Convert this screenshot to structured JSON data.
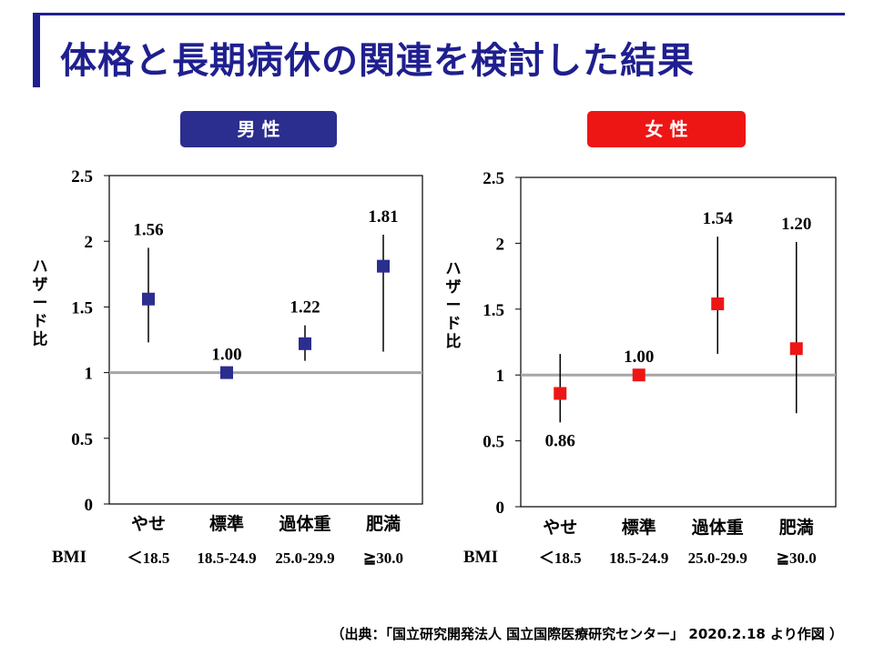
{
  "title": "体格と長期病休の関連を検討した結果",
  "source": "（出典：「国立研究開発法人 国立国際医療研究センター」 2020.2.18 より作図 ）",
  "colors": {
    "title": "#1f1f8f",
    "male": "#2b2d8f",
    "female": "#ee1515",
    "reference_line": "#a6a6a6"
  },
  "chart_data": [
    {
      "type": "scatter",
      "panel_label": "男 性",
      "ylabel": "ハザード比",
      "ylim": [
        0,
        2.5
      ],
      "yticks": [
        "0",
        "0.5",
        "1",
        "1.5",
        "2",
        "2.5"
      ],
      "categories": [
        "やせ",
        "標準",
        "過体重",
        "肥満"
      ],
      "bmi_label": "BMI",
      "bmi_ranges": [
        "＜18.5",
        "18.5-24.9",
        "25.0-29.9",
        "≧30.0"
      ],
      "reference_value": 1,
      "series": [
        {
          "values": [
            1.56,
            1.0,
            1.22,
            1.81
          ],
          "value_labels": [
            "1.56",
            "1.00",
            "1.22",
            "1.81"
          ],
          "ci_lower": [
            1.23,
            1.0,
            1.09,
            1.16
          ],
          "ci_upper": [
            1.95,
            1.0,
            1.36,
            2.05
          ]
        }
      ]
    },
    {
      "type": "scatter",
      "panel_label": "女 性",
      "ylabel": "ハザード比",
      "ylim": [
        0,
        2.5
      ],
      "yticks": [
        "0",
        "0.5",
        "1",
        "1.5",
        "2",
        "2.5"
      ],
      "categories": [
        "やせ",
        "標準",
        "過体重",
        "肥満"
      ],
      "bmi_label": "BMI",
      "bmi_ranges": [
        "＜18.5",
        "18.5-24.9",
        "25.0-29.9",
        "≧30.0"
      ],
      "reference_value": 1,
      "series": [
        {
          "values": [
            0.86,
            1.0,
            1.54,
            1.2
          ],
          "value_labels": [
            "0.86",
            "1.00",
            "1.54",
            "1.20"
          ],
          "ci_lower": [
            0.64,
            1.0,
            1.16,
            0.71
          ],
          "ci_upper": [
            1.16,
            1.0,
            2.05,
            2.01
          ]
        }
      ]
    }
  ]
}
